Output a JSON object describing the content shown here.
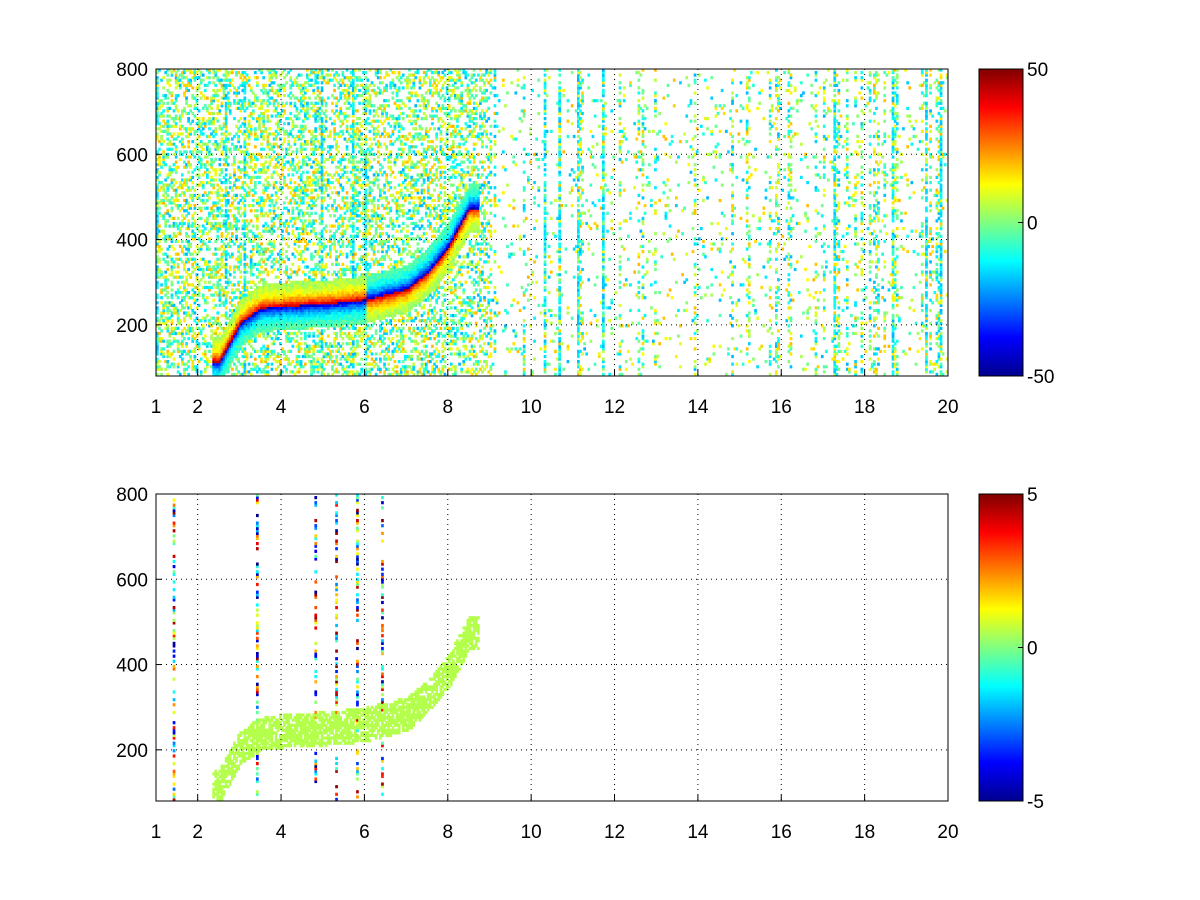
{
  "chart_data": [
    {
      "type": "heatmap",
      "title": "",
      "xlabel": "",
      "ylabel": "",
      "xlim": [
        1,
        20
      ],
      "ylim": [
        80,
        800
      ],
      "x_ticks": [
        "1",
        "2",
        "4",
        "6",
        "8",
        "10",
        "12",
        "14",
        "16",
        "18",
        "20"
      ],
      "y_ticks": [
        "200",
        "400",
        "600",
        "800"
      ],
      "grid": true,
      "colormap": "jet",
      "colorbar": {
        "min": -50,
        "max": 50,
        "ticks": [
          "50",
          "0",
          "-50"
        ]
      },
      "features": {
        "ridge_center": [
          [
            2.5,
            110
          ],
          [
            3,
            200
          ],
          [
            3.5,
            235
          ],
          [
            4,
            240
          ],
          [
            5,
            245
          ],
          [
            6,
            255
          ],
          [
            7,
            280
          ],
          [
            7.5,
            320
          ],
          [
            8,
            380
          ],
          [
            8.5,
            470
          ]
        ],
        "ridge_value_min": -45,
        "ridge_value_max": 45,
        "scatter_extent_x": [
          1,
          20
        ],
        "dense_region_x": [
          1,
          9
        ]
      }
    },
    {
      "type": "heatmap",
      "title": "",
      "xlabel": "",
      "ylabel": "",
      "xlim": [
        1,
        20
      ],
      "ylim": [
        80,
        800
      ],
      "x_ticks": [
        "1",
        "2",
        "4",
        "6",
        "8",
        "10",
        "12",
        "14",
        "16",
        "18",
        "20"
      ],
      "y_ticks": [
        "200",
        "400",
        "600",
        "800"
      ],
      "grid": true,
      "colormap": "jet",
      "colorbar": {
        "min": -5,
        "max": 5,
        "ticks": [
          "5",
          "0",
          "-5"
        ]
      },
      "features": {
        "ridge_center": [
          [
            2.5,
            110
          ],
          [
            3,
            200
          ],
          [
            3.5,
            235
          ],
          [
            4,
            240
          ],
          [
            5,
            245
          ],
          [
            6,
            255
          ],
          [
            7,
            280
          ],
          [
            7.5,
            320
          ],
          [
            8,
            380
          ],
          [
            8.5,
            470
          ]
        ],
        "dominant_value": 0.5,
        "vertical_streaks_x": [
          1.4,
          3.4,
          4.8,
          5.3,
          5.8,
          6.4
        ]
      }
    }
  ]
}
